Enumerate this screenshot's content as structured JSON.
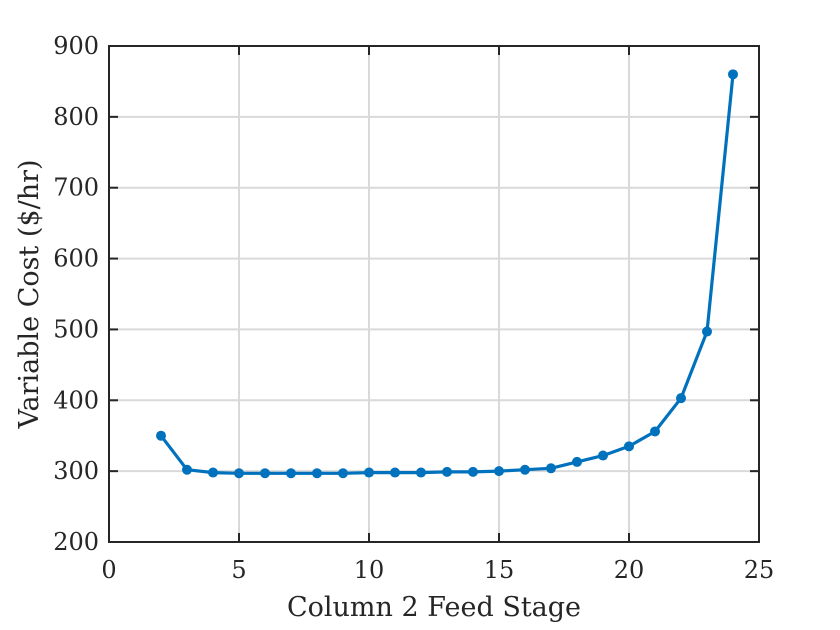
{
  "chart_data": {
    "type": "line",
    "title": "",
    "xlabel": "Column 2 Feed Stage",
    "ylabel": "Variable Cost ($/hr)",
    "xlim": [
      0,
      25
    ],
    "ylim": [
      200,
      900
    ],
    "xticks": [
      0,
      5,
      10,
      15,
      20,
      25
    ],
    "yticks": [
      200,
      300,
      400,
      500,
      600,
      700,
      800,
      900
    ],
    "grid": true,
    "legend": "none",
    "series": [
      {
        "color": "#0072BD",
        "marker": "circle",
        "x": [
          2,
          3,
          4,
          5,
          6,
          7,
          8,
          9,
          10,
          11,
          12,
          13,
          14,
          15,
          16,
          17,
          18,
          19,
          20,
          21,
          22,
          23,
          24
        ],
        "y": [
          350,
          302,
          298,
          297,
          297,
          297,
          297,
          297,
          298,
          298,
          298,
          299,
          299,
          300,
          302,
          304,
          313,
          322,
          335,
          356,
          403,
          497,
          860
        ]
      }
    ]
  }
}
